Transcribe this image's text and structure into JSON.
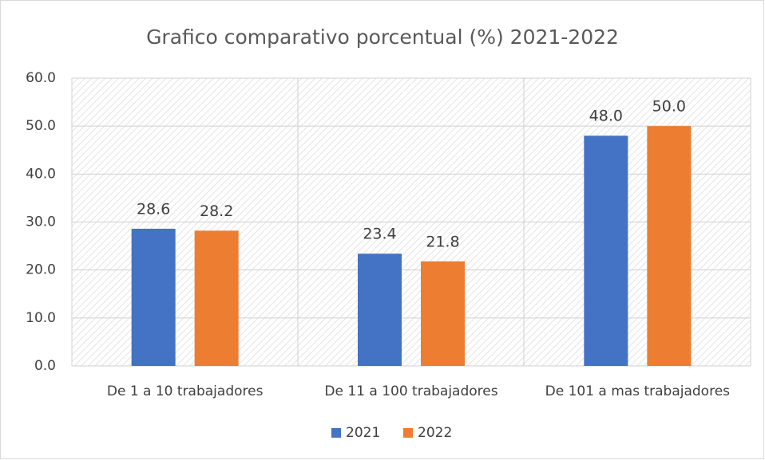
{
  "chart_data": {
    "type": "bar",
    "title": "Grafico comparativo porcentual (%) 2021-2022",
    "categories": [
      "De 1 a 10 trabajadores",
      "De 11 a 100 trabajadores",
      "De 101 a mas trabajadores"
    ],
    "series": [
      {
        "name": "2021",
        "color": "#4472c4",
        "values": [
          28.6,
          23.4,
          48.0
        ],
        "value_labels": [
          "28.6",
          "23.4",
          "48.0"
        ]
      },
      {
        "name": "2022",
        "color": "#ed7d31",
        "values": [
          28.2,
          21.8,
          50.0
        ],
        "value_labels": [
          "28.2",
          "21.8",
          "50.0"
        ]
      }
    ],
    "ylim": [
      0,
      60
    ],
    "yticks": [
      {
        "value": 0,
        "label": "0.0"
      },
      {
        "value": 10,
        "label": "10.0"
      },
      {
        "value": 20,
        "label": "20.0"
      },
      {
        "value": 30,
        "label": "30.0"
      },
      {
        "value": 40,
        "label": "40.0"
      },
      {
        "value": 50,
        "label": "50.0"
      },
      {
        "value": 60,
        "label": "60.0"
      }
    ],
    "grid": true,
    "legend": "bottom"
  }
}
